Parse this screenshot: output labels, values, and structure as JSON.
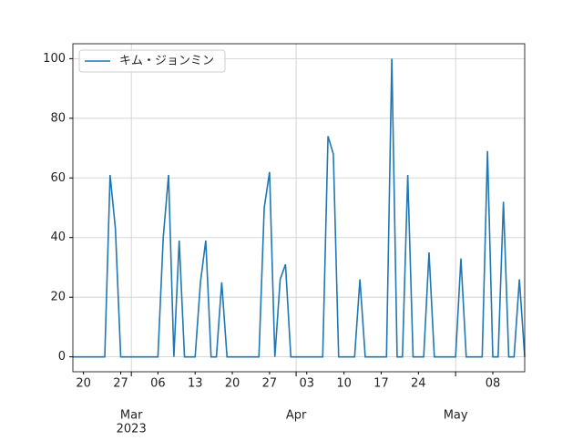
{
  "chart_data": {
    "type": "line",
    "x": [
      "2023-02-18",
      "2023-02-19",
      "2023-02-20",
      "2023-02-21",
      "2023-02-22",
      "2023-02-23",
      "2023-02-24",
      "2023-02-25",
      "2023-02-26",
      "2023-02-27",
      "2023-02-28",
      "2023-03-01",
      "2023-03-02",
      "2023-03-03",
      "2023-03-04",
      "2023-03-05",
      "2023-03-06",
      "2023-03-07",
      "2023-03-08",
      "2023-03-09",
      "2023-03-10",
      "2023-03-11",
      "2023-03-12",
      "2023-03-13",
      "2023-03-14",
      "2023-03-15",
      "2023-03-16",
      "2023-03-17",
      "2023-03-18",
      "2023-03-19",
      "2023-03-20",
      "2023-03-21",
      "2023-03-22",
      "2023-03-23",
      "2023-03-24",
      "2023-03-25",
      "2023-03-26",
      "2023-03-27",
      "2023-03-28",
      "2023-03-29",
      "2023-03-30",
      "2023-03-31",
      "2023-04-01",
      "2023-04-02",
      "2023-04-03",
      "2023-04-04",
      "2023-04-05",
      "2023-04-06",
      "2023-04-07",
      "2023-04-08",
      "2023-04-09",
      "2023-04-10",
      "2023-04-11",
      "2023-04-12",
      "2023-04-13",
      "2023-04-14",
      "2023-04-15",
      "2023-04-16",
      "2023-04-17",
      "2023-04-18",
      "2023-04-19",
      "2023-04-20",
      "2023-04-21",
      "2023-04-22",
      "2023-04-23",
      "2023-04-24",
      "2023-04-25",
      "2023-04-26",
      "2023-04-27",
      "2023-04-28",
      "2023-04-29",
      "2023-04-30",
      "2023-05-01",
      "2023-05-02",
      "2023-05-03",
      "2023-05-04",
      "2023-05-05",
      "2023-05-06",
      "2023-05-07",
      "2023-05-08",
      "2023-05-09",
      "2023-05-10",
      "2023-05-11",
      "2023-05-12",
      "2023-05-13",
      "2023-05-14"
    ],
    "series": [
      {
        "name": "キム・ジョンミン",
        "color": "#1f77b4",
        "values": [
          0,
          0,
          0,
          0,
          0,
          0,
          0,
          61,
          43,
          0,
          0,
          0,
          0,
          0,
          0,
          0,
          0,
          40,
          61,
          0,
          39,
          0,
          0,
          0,
          25,
          39,
          0,
          0,
          25,
          0,
          0,
          0,
          0,
          0,
          0,
          0,
          50,
          62,
          0,
          26,
          31,
          0,
          0,
          0,
          0,
          0,
          0,
          0,
          74,
          68,
          0,
          0,
          0,
          0,
          26,
          0,
          0,
          0,
          0,
          0,
          100,
          0,
          0,
          61,
          0,
          0,
          0,
          35,
          0,
          0,
          0,
          0,
          0,
          33,
          0,
          0,
          0,
          0,
          69,
          0,
          0,
          52,
          0,
          0,
          26,
          0
        ]
      }
    ],
    "xlim": [
      "2023-02-18",
      "2023-05-14"
    ],
    "xticks": [
      {
        "value": "2023-02-20",
        "label": "20"
      },
      {
        "value": "2023-02-27",
        "label": "27"
      },
      {
        "value": "2023-03-06",
        "label": "06"
      },
      {
        "value": "2023-03-13",
        "label": "13"
      },
      {
        "value": "2023-03-20",
        "label": "20"
      },
      {
        "value": "2023-03-27",
        "label": "27"
      },
      {
        "value": "2023-04-03",
        "label": "03"
      },
      {
        "value": "2023-04-10",
        "label": "10"
      },
      {
        "value": "2023-04-17",
        "label": "17"
      },
      {
        "value": "2023-04-24",
        "label": "24"
      },
      {
        "value": "2023-05-08",
        "label": "08"
      }
    ],
    "xticks_months": [
      {
        "value": "2023-03-01",
        "label": "Mar"
      },
      {
        "value": "2023-04-01",
        "label": "Apr"
      },
      {
        "value": "2023-05-01",
        "label": "May"
      }
    ],
    "x_year_label": {
      "value": "2023-03-01",
      "label": "2023"
    },
    "ylim": [
      -5,
      105
    ],
    "yticks": [
      0,
      20,
      40,
      60,
      80,
      100
    ],
    "grid": true,
    "legend": "upper left"
  }
}
